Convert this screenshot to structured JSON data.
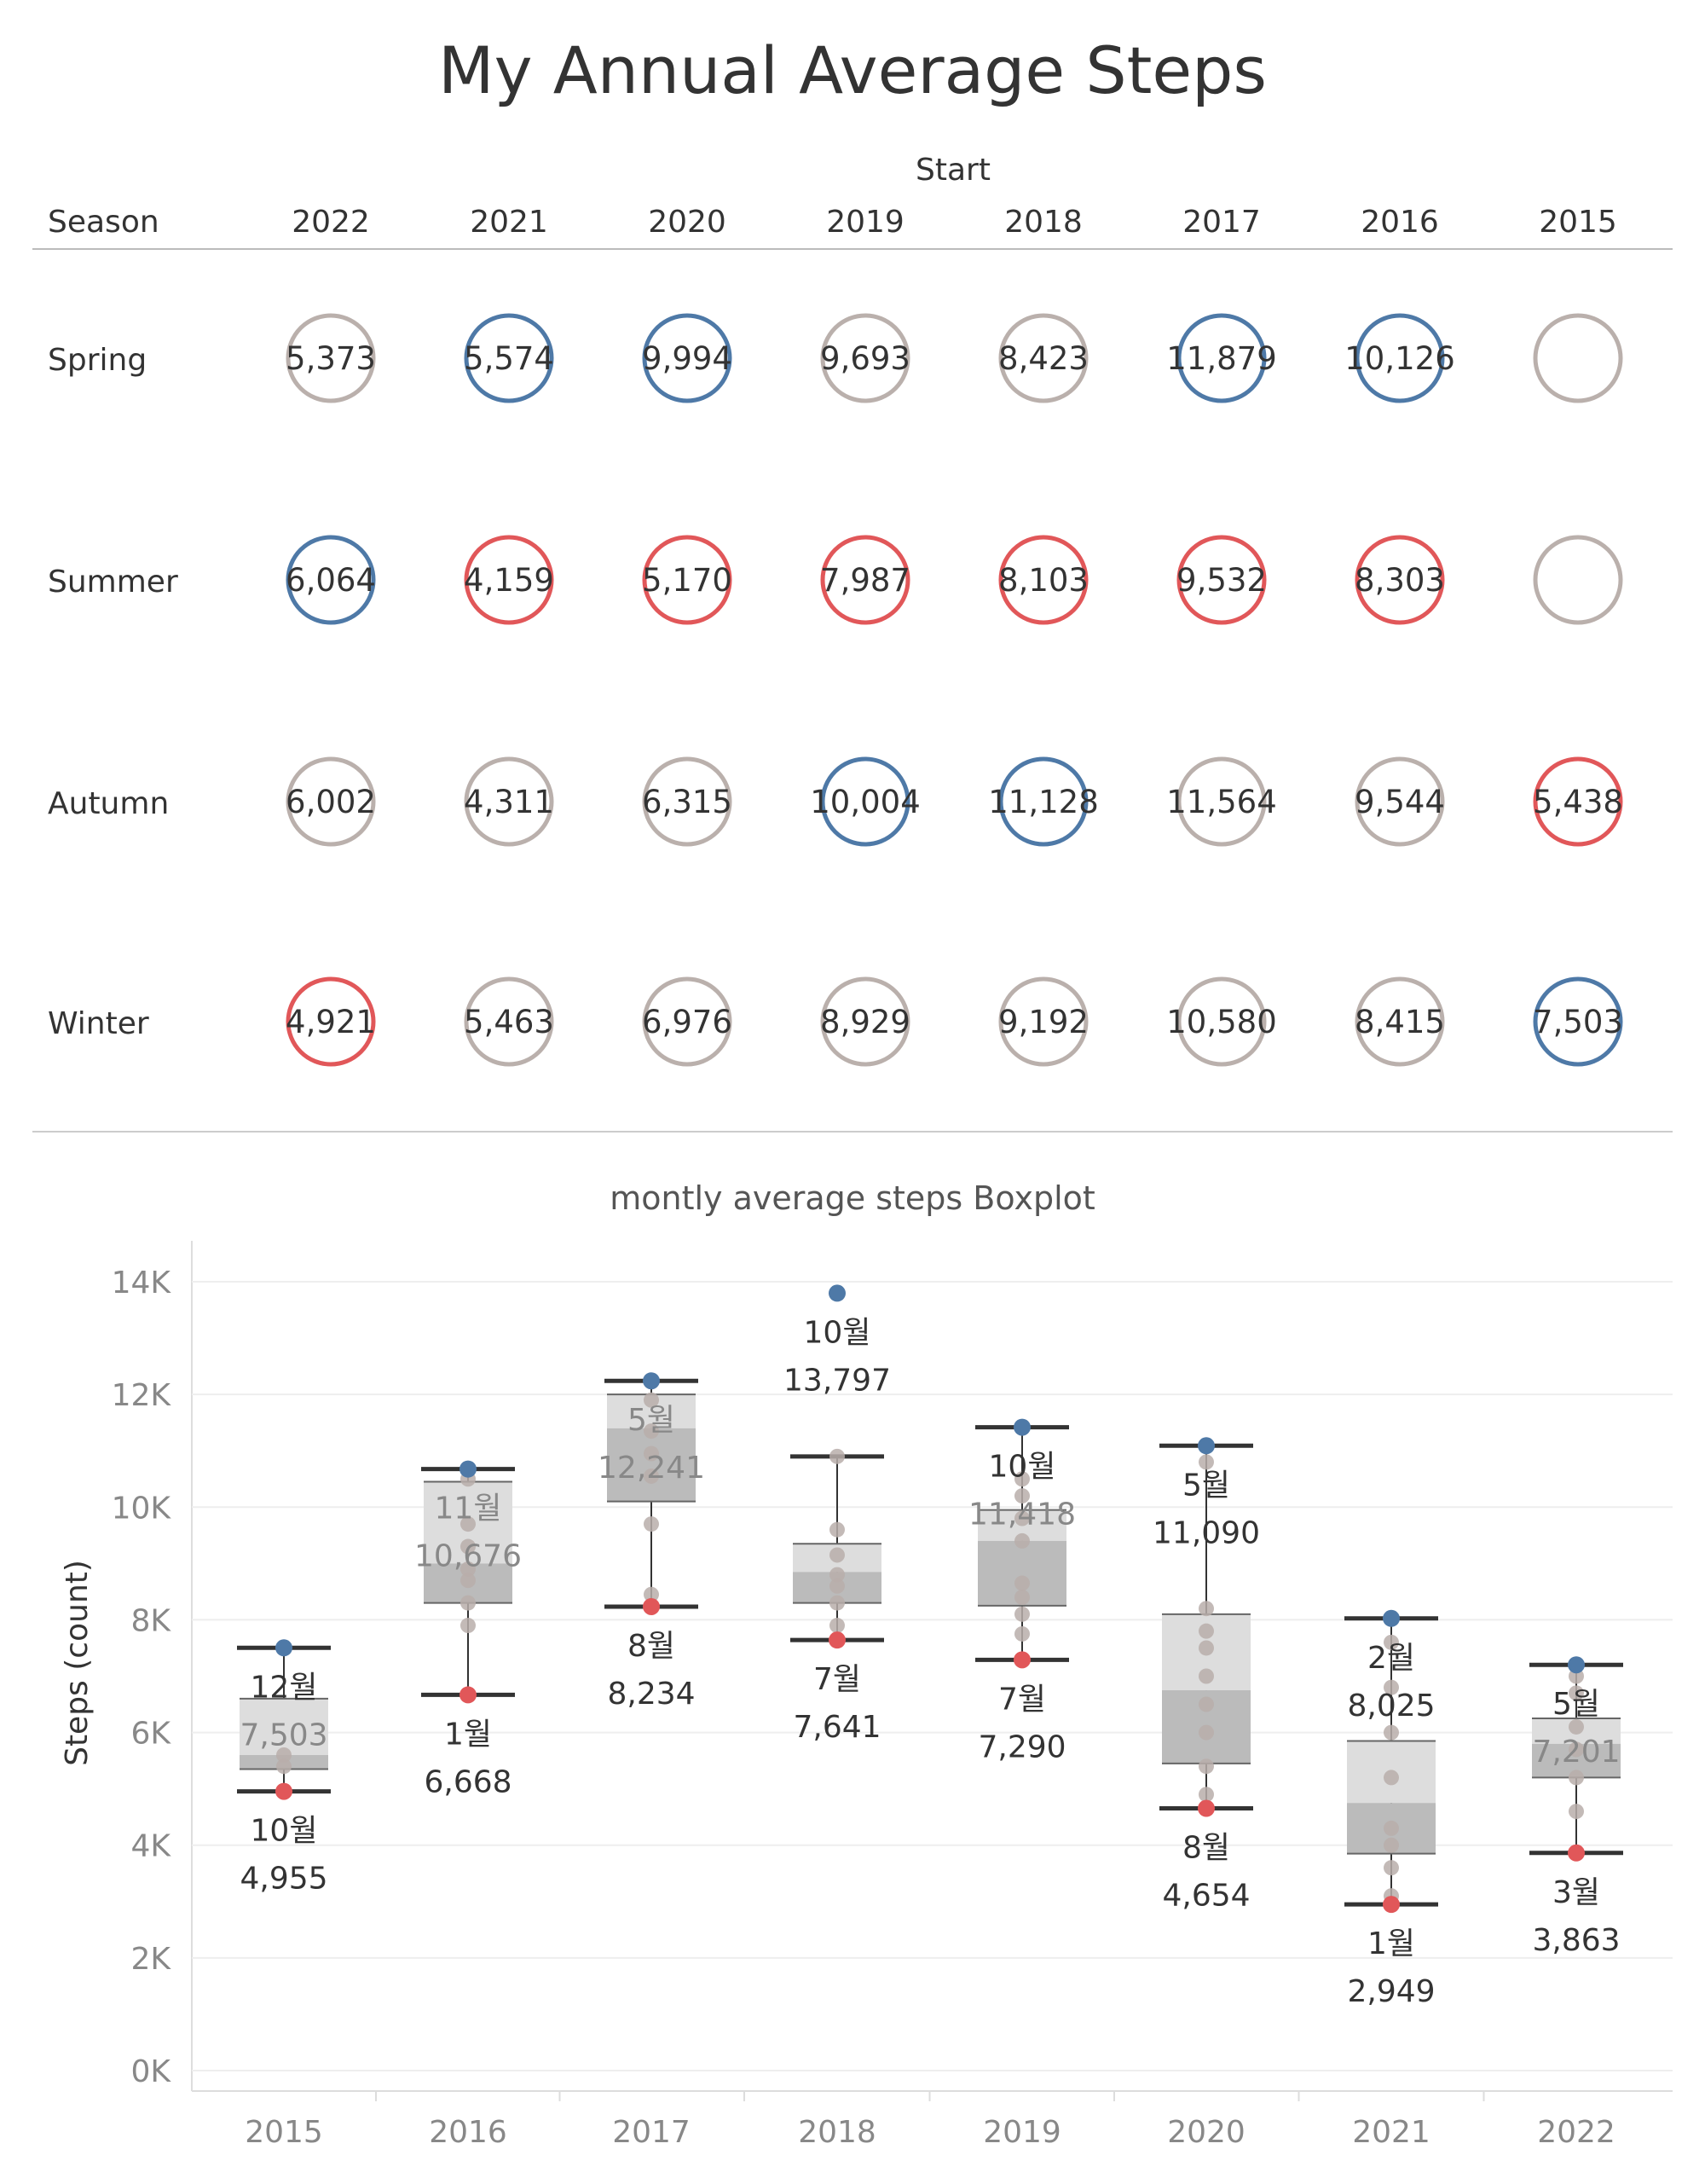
{
  "title": "My Annual Average Steps",
  "colors": {
    "high": "#4e79a7",
    "low": "#e15759",
    "neutral": "#bab0ac",
    "text": "#333333",
    "axis_text": "#888888",
    "grid": "#eeeeee",
    "box_upper": "#dddddd",
    "box_lower": "#bbbbbb",
    "whisker": "#333333",
    "dot": "#b8aeaa"
  },
  "table": {
    "column_group_label": "Start",
    "row_header": "Season",
    "years": [
      "2022",
      "2021",
      "2020",
      "2019",
      "2018",
      "2017",
      "2016",
      "2015"
    ],
    "rows": [
      {
        "season": "Spring",
        "cells": [
          {
            "value": "5,373",
            "status": "neutral"
          },
          {
            "value": "5,574",
            "status": "high"
          },
          {
            "value": "9,994",
            "status": "high"
          },
          {
            "value": "9,693",
            "status": "neutral"
          },
          {
            "value": "8,423",
            "status": "neutral"
          },
          {
            "value": "11,879",
            "status": "high"
          },
          {
            "value": "10,126",
            "status": "high"
          },
          {
            "value": "",
            "status": "neutral"
          }
        ]
      },
      {
        "season": "Summer",
        "cells": [
          {
            "value": "6,064",
            "status": "high"
          },
          {
            "value": "4,159",
            "status": "low"
          },
          {
            "value": "5,170",
            "status": "low"
          },
          {
            "value": "7,987",
            "status": "low"
          },
          {
            "value": "8,103",
            "status": "low"
          },
          {
            "value": "9,532",
            "status": "low"
          },
          {
            "value": "8,303",
            "status": "low"
          },
          {
            "value": "",
            "status": "neutral"
          }
        ]
      },
      {
        "season": "Autumn",
        "cells": [
          {
            "value": "6,002",
            "status": "neutral"
          },
          {
            "value": "4,311",
            "status": "neutral"
          },
          {
            "value": "6,315",
            "status": "neutral"
          },
          {
            "value": "10,004",
            "status": "high"
          },
          {
            "value": "11,128",
            "status": "high"
          },
          {
            "value": "11,564",
            "status": "neutral"
          },
          {
            "value": "9,544",
            "status": "neutral"
          },
          {
            "value": "5,438",
            "status": "low"
          }
        ]
      },
      {
        "season": "Winter",
        "cells": [
          {
            "value": "4,921",
            "status": "low"
          },
          {
            "value": "5,463",
            "status": "neutral"
          },
          {
            "value": "6,976",
            "status": "neutral"
          },
          {
            "value": "8,929",
            "status": "neutral"
          },
          {
            "value": "9,192",
            "status": "neutral"
          },
          {
            "value": "10,580",
            "status": "neutral"
          },
          {
            "value": "8,415",
            "status": "neutral"
          },
          {
            "value": "7,503",
            "status": "high"
          }
        ]
      }
    ]
  },
  "chart_data": {
    "type": "boxplot",
    "title": "montly average steps Boxplot",
    "ylabel": "Steps (count)",
    "xlabel": "",
    "ylim": [
      0,
      14500
    ],
    "yticks": [
      0,
      2000,
      4000,
      6000,
      8000,
      10000,
      12000,
      14000
    ],
    "ytick_labels": [
      "0K",
      "2K",
      "4K",
      "6K",
      "8K",
      "10K",
      "12K",
      "14K"
    ],
    "grid": true,
    "categories": [
      "2015",
      "2016",
      "2017",
      "2018",
      "2019",
      "2020",
      "2021",
      "2022"
    ],
    "boxes": [
      {
        "year": "2015",
        "whisker_low": 4955,
        "q1": 5350,
        "median": 5600,
        "q3": 6600,
        "whisker_high": 7503,
        "points": [
          5600,
          5400
        ],
        "max": {
          "value": 7503,
          "month": "12월",
          "value_label": "7,503"
        },
        "min": {
          "value": 4955,
          "month": "10월",
          "value_label": "4,955"
        }
      },
      {
        "year": "2016",
        "whisker_low": 6668,
        "q1": 8300,
        "median": 9000,
        "q3": 10450,
        "whisker_high": 10676,
        "points": [
          10500,
          9700,
          9300,
          8900,
          8700,
          8300,
          7900
        ],
        "max": {
          "value": 10676,
          "month": "11월",
          "value_label": "10,676"
        },
        "min": {
          "value": 6668,
          "month": "1월",
          "value_label": "6,668"
        }
      },
      {
        "year": "2017",
        "whisker_low": 8234,
        "q1": 10100,
        "median": 11400,
        "q3": 12000,
        "whisker_high": 12241,
        "points": [
          11900,
          11350,
          10950,
          10550,
          9700,
          8450
        ],
        "max": {
          "value": 12241,
          "month": "5월",
          "value_label": "12,241"
        },
        "min": {
          "value": 8234,
          "month": "8월",
          "value_label": "8,234"
        }
      },
      {
        "year": "2018",
        "whisker_low": 7641,
        "q1": 8300,
        "median": 8850,
        "q3": 9350,
        "whisker_high": 10900,
        "points": [
          10900,
          9600,
          9150,
          8800,
          8600,
          8300,
          7900
        ],
        "max": {
          "value": 13797,
          "month": "10월",
          "value_label": "13,797"
        },
        "min": {
          "value": 7641,
          "month": "7월",
          "value_label": "7,641"
        }
      },
      {
        "year": "2019",
        "whisker_low": 7290,
        "q1": 8250,
        "median": 9400,
        "q3": 9950,
        "whisker_high": 11418,
        "points": [
          10500,
          10200,
          9800,
          9400,
          8650,
          8400,
          8100,
          7750
        ],
        "max": {
          "value": 11418,
          "month": "10월",
          "value_label": "11,418"
        },
        "min": {
          "value": 7290,
          "month": "7월",
          "value_label": "7,290"
        }
      },
      {
        "year": "2020",
        "whisker_low": 4654,
        "q1": 5450,
        "median": 6750,
        "q3": 8100,
        "whisker_high": 11090,
        "points": [
          10800,
          8200,
          7800,
          7500,
          7000,
          6500,
          6000,
          5400,
          4900
        ],
        "max": {
          "value": 11090,
          "month": "5월",
          "value_label": "11,090"
        },
        "min": {
          "value": 4654,
          "month": "8월",
          "value_label": "4,654"
        }
      },
      {
        "year": "2021",
        "whisker_low": 2949,
        "q1": 3850,
        "median": 4750,
        "q3": 5850,
        "whisker_high": 8025,
        "points": [
          7600,
          6800,
          6000,
          5200,
          4300,
          4000,
          3600,
          3100
        ],
        "max": {
          "value": 8025,
          "month": "2월",
          "value_label": "8,025"
        },
        "min": {
          "value": 2949,
          "month": "1월",
          "value_label": "2,949"
        }
      },
      {
        "year": "2022",
        "whisker_low": 3863,
        "q1": 5200,
        "median": 5800,
        "q3": 6250,
        "whisker_high": 7201,
        "points": [
          7000,
          6700,
          6100,
          5700,
          5200,
          4600
        ],
        "max": {
          "value": 7201,
          "month": "5월",
          "value_label": "7,201"
        },
        "min": {
          "value": 3863,
          "month": "3월",
          "value_label": "3,863"
        }
      }
    ]
  }
}
